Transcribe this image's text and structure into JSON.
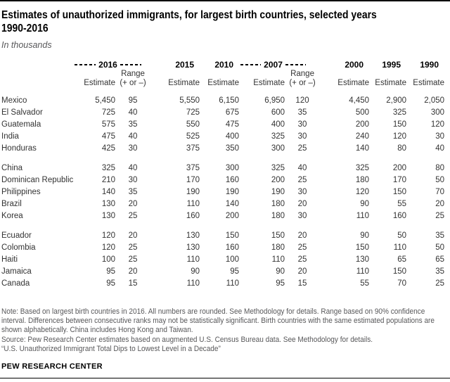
{
  "header": {
    "title_line1": "Estimates of unauthorized immigrants, for largest birth countries, selected years",
    "title_line2": "1990-2016",
    "subtitle": "In thousands"
  },
  "table_ui": {
    "years": {
      "y2016": "2016",
      "y2015": "2015",
      "y2010": "2010",
      "y2007": "2007",
      "y2000": "2000",
      "y1995": "1995",
      "y1990": "1990"
    },
    "labels": {
      "estimate": "Estimate",
      "range_line1": "Range",
      "range_line2": "(+ or –)"
    }
  },
  "chart_data": {
    "type": "table",
    "title": "Estimates of unauthorized immigrants, for largest birth countries, selected years 1990-2016",
    "units": "In thousands",
    "columns": [
      "2016 Estimate",
      "2016 Range (+ or –)",
      "2015 Estimate",
      "2010 Estimate",
      "2007 Estimate",
      "2007 Range (+ or –)",
      "2000 Estimate",
      "1995 Estimate",
      "1990 Estimate"
    ],
    "row_groups": [
      [
        {
          "country": "Mexico",
          "values": [
            "5,450",
            "95",
            "5,550",
            "6,150",
            "6,950",
            "120",
            "4,450",
            "2,900",
            "2,050"
          ]
        },
        {
          "country": "El Salvador",
          "values": [
            "725",
            "40",
            "725",
            "675",
            "600",
            "35",
            "500",
            "325",
            "300"
          ]
        },
        {
          "country": "Guatemala",
          "values": [
            "575",
            "35",
            "550",
            "475",
            "400",
            "30",
            "200",
            "150",
            "120"
          ]
        },
        {
          "country": "India",
          "values": [
            "475",
            "40",
            "525",
            "400",
            "325",
            "30",
            "240",
            "120",
            "30"
          ]
        },
        {
          "country": "Honduras",
          "values": [
            "425",
            "30",
            "375",
            "350",
            "300",
            "25",
            "140",
            "80",
            "40"
          ]
        }
      ],
      [
        {
          "country": "China",
          "values": [
            "325",
            "40",
            "375",
            "300",
            "325",
            "40",
            "325",
            "200",
            "80"
          ]
        },
        {
          "country": "Dominican Republic",
          "values": [
            "210",
            "30",
            "170",
            "160",
            "200",
            "25",
            "180",
            "170",
            "50"
          ]
        },
        {
          "country": "Philippines",
          "values": [
            "140",
            "35",
            "190",
            "190",
            "190",
            "30",
            "120",
            "150",
            "70"
          ]
        },
        {
          "country": "Brazil",
          "values": [
            "130",
            "20",
            "110",
            "140",
            "180",
            "20",
            "90",
            "55",
            "20"
          ]
        },
        {
          "country": "Korea",
          "values": [
            "130",
            "25",
            "160",
            "200",
            "180",
            "30",
            "110",
            "160",
            "25"
          ]
        }
      ],
      [
        {
          "country": "Ecuador",
          "values": [
            "120",
            "20",
            "130",
            "150",
            "150",
            "20",
            "90",
            "50",
            "35"
          ]
        },
        {
          "country": "Colombia",
          "values": [
            "120",
            "25",
            "130",
            "160",
            "180",
            "25",
            "150",
            "110",
            "50"
          ]
        },
        {
          "country": "Haiti",
          "values": [
            "100",
            "25",
            "110",
            "100",
            "110",
            "25",
            "130",
            "65",
            "65"
          ]
        },
        {
          "country": "Jamaica",
          "values": [
            "95",
            "20",
            "90",
            "95",
            "90",
            "20",
            "110",
            "150",
            "35"
          ]
        },
        {
          "country": "Canada",
          "values": [
            "95",
            "15",
            "110",
            "110",
            "95",
            "15",
            "55",
            "70",
            "25"
          ]
        }
      ]
    ]
  },
  "footer": {
    "note": "Note: Based on largest birth countries in 2016. All numbers are rounded. See Methodology for details. Range based on 90% confidence interval. Differences between consecutive ranks may not be statistically significant. Birth countries with the same estimated populations are shown alphabetically. China includes Hong Kong and Taiwan.",
    "source": "Source: Pew Research Center estimates based on augmented U.S. Census Bureau data. See Methodology for details.",
    "citation": "“U.S. Unauthorized Immigrant Total Dips to Lowest Level in a Decade”",
    "brand": "PEW RESEARCH CENTER"
  }
}
